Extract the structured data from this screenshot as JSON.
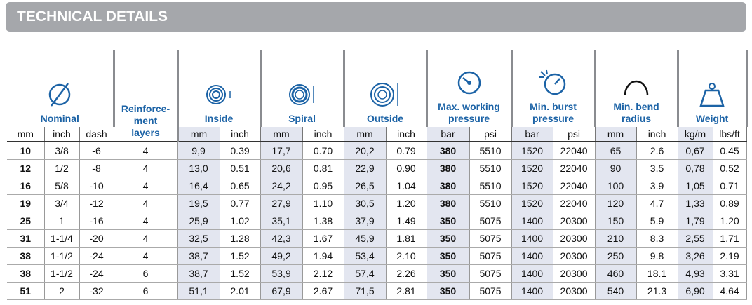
{
  "header": {
    "title": "TECHNICAL DETAILS"
  },
  "table": {
    "groups": [
      {
        "label": "Nominal",
        "span": 3
      },
      {
        "label": "Reinforce-\nment\nlayers",
        "span": 1
      },
      {
        "label": "Inside",
        "span": 2
      },
      {
        "label": "Spiral",
        "span": 2
      },
      {
        "label": "Outside",
        "span": 2
      },
      {
        "label": "Max. working\npressure",
        "span": 2
      },
      {
        "label": "Min. burst\npressure",
        "span": 2
      },
      {
        "label": "Min. bend\nradius",
        "span": 2
      },
      {
        "label": "Weight",
        "span": 2
      }
    ],
    "subheaders": [
      "mm",
      "inch",
      "dash",
      "mm",
      "inch",
      "mm",
      "inch",
      "mm",
      "inch",
      "bar",
      "psi",
      "bar",
      "psi",
      "mm",
      "inch",
      "kg/m",
      "lbs/ft"
    ],
    "rows": [
      [
        "10",
        "3/8",
        "-6",
        "4",
        "9,9",
        "0.39",
        "17,7",
        "0.70",
        "20,2",
        "0.79",
        "380",
        "5510",
        "1520",
        "22040",
        "65",
        "2.6",
        "0,67",
        "0.45"
      ],
      [
        "12",
        "1/2",
        "-8",
        "4",
        "13,0",
        "0.51",
        "20,6",
        "0.81",
        "22,9",
        "0.90",
        "380",
        "5510",
        "1520",
        "22040",
        "90",
        "3.5",
        "0,78",
        "0.52"
      ],
      [
        "16",
        "5/8",
        "-10",
        "4",
        "16,4",
        "0.65",
        "24,2",
        "0.95",
        "26,5",
        "1.04",
        "380",
        "5510",
        "1520",
        "22040",
        "100",
        "3.9",
        "1,05",
        "0.71"
      ],
      [
        "19",
        "3/4",
        "-12",
        "4",
        "19,5",
        "0.77",
        "27,9",
        "1.10",
        "30,5",
        "1.20",
        "380",
        "5510",
        "1520",
        "22040",
        "120",
        "4.7",
        "1,33",
        "0.89"
      ],
      [
        "25",
        "1",
        "-16",
        "4",
        "25,9",
        "1.02",
        "35,1",
        "1.38",
        "37,9",
        "1.49",
        "350",
        "5075",
        "1400",
        "20300",
        "150",
        "5.9",
        "1,79",
        "1.20"
      ],
      [
        "31",
        "1-1/4",
        "-20",
        "4",
        "32,5",
        "1.28",
        "42,3",
        "1.67",
        "45,9",
        "1.81",
        "350",
        "5075",
        "1400",
        "20300",
        "210",
        "8.3",
        "2,55",
        "1.71"
      ],
      [
        "38",
        "1-1/2",
        "-24",
        "4",
        "38,7",
        "1.52",
        "49,2",
        "1.94",
        "53,4",
        "2.10",
        "350",
        "5075",
        "1400",
        "20300",
        "250",
        "9.8",
        "3,26",
        "2.19"
      ],
      [
        "38",
        "1-1/2",
        "-24",
        "6",
        "38,7",
        "1.52",
        "53,9",
        "2.12",
        "57,4",
        "2.26",
        "350",
        "5075",
        "1400",
        "20300",
        "460",
        "18.1",
        "4,93",
        "3.31"
      ],
      [
        "51",
        "2",
        "-32",
        "6",
        "51,1",
        "2.01",
        "67,9",
        "2.67",
        "71,5",
        "2.81",
        "350",
        "5075",
        "1400",
        "20300",
        "540",
        "21.3",
        "6,90",
        "4.64"
      ]
    ]
  }
}
